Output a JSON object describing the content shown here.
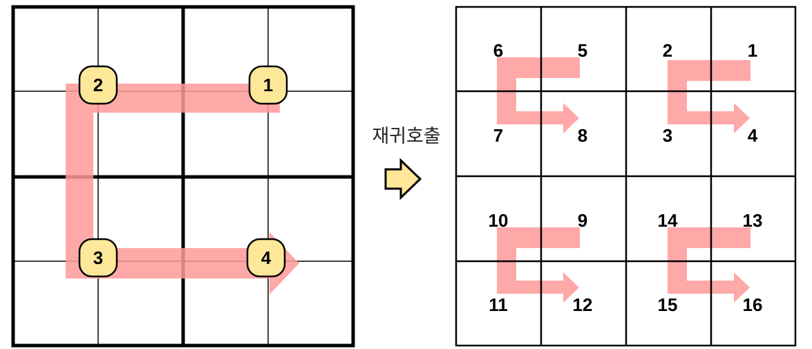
{
  "diagram": {
    "left_panel": {
      "order_labels": [
        "1",
        "2",
        "3",
        "4"
      ]
    },
    "transition": {
      "label": "재귀호출",
      "icon": "right-arrow-icon"
    },
    "right_panel": {
      "quadrants": [
        {
          "labels": [
            "6",
            "5",
            "7",
            "8"
          ]
        },
        {
          "labels": [
            "2",
            "1",
            "3",
            "4"
          ]
        },
        {
          "labels": [
            "10",
            "9",
            "11",
            "12"
          ]
        },
        {
          "labels": [
            "14",
            "13",
            "15",
            "16"
          ]
        }
      ]
    },
    "colors": {
      "path": "#ff9999",
      "node_fill": "#fde89a",
      "node_stroke": "#000000",
      "arrow_icon_fill": "#ffe699",
      "grid": "#000000"
    }
  }
}
